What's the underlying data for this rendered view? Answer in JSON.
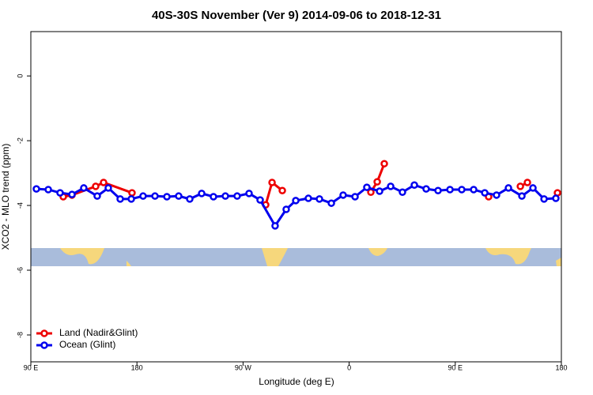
{
  "chart_data": {
    "type": "line",
    "title": "40S-30S November (Ver 9)   2014-09-06 to 2018-12-31",
    "x_label": "Longitude (deg E)",
    "y_label": "XCO2 - MLO trend (ppm)",
    "xlim": [
      90,
      540
    ],
    "xticks": [
      {
        "value": 90,
        "label": "90 E"
      },
      {
        "value": 180,
        "label": "180"
      },
      {
        "value": 270,
        "label": "90 W"
      },
      {
        "value": 360,
        "label": "0"
      },
      {
        "value": 450,
        "label": "90 E"
      },
      {
        "value": 540,
        "label": "180"
      }
    ],
    "ylim": [
      -8.83,
      1.37
    ],
    "yticks": [
      0,
      -2,
      -4,
      -6,
      -8
    ],
    "legend": "bottom-left",
    "series": [
      {
        "name": "Land (Nadir&Glint)",
        "color": "#ee0000",
        "x": [
          117.5,
          124.9,
          145.0,
          151.7,
          175.8,
          null,
          289.2,
          294.6,
          303.3,
          null,
          378.4,
          383.8,
          389.8,
          null,
          478.3,
          null,
          505.2,
          511.2,
          null,
          536.7
        ],
        "values": [
          -3.73,
          -3.68,
          -3.41,
          -3.29,
          -3.61,
          null,
          -3.98,
          -3.29,
          -3.54,
          null,
          -3.59,
          -3.27,
          -2.71,
          null,
          -3.73,
          null,
          -3.41,
          -3.29,
          null,
          -3.61
        ]
      },
      {
        "name": "Ocean (Glint)",
        "color": "#0000ee",
        "x": [
          94.7,
          104.8,
          114.8,
          124.9,
          134.9,
          146.3,
          155.7,
          165.8,
          175.2,
          185.2,
          195.3,
          205.4,
          215.4,
          224.8,
          234.9,
          244.9,
          255.0,
          265.0,
          275.1,
          284.5,
          297.2,
          306.6,
          314.7,
          325.4,
          334.8,
          344.9,
          354.9,
          365.0,
          375.0,
          385.8,
          395.2,
          405.2,
          415.3,
          425.3,
          435.4,
          445.5,
          455.5,
          465.6,
          475.0,
          485.0,
          495.1,
          506.5,
          515.9,
          525.3,
          535.3
        ],
        "values": [
          -3.49,
          -3.51,
          -3.61,
          -3.66,
          -3.46,
          -3.71,
          -3.46,
          -3.8,
          -3.8,
          -3.71,
          -3.71,
          -3.73,
          -3.71,
          -3.8,
          -3.63,
          -3.73,
          -3.71,
          -3.71,
          -3.63,
          -3.83,
          -4.63,
          -4.12,
          -3.85,
          -3.78,
          -3.8,
          -3.93,
          -3.68,
          -3.73,
          -3.44,
          -3.56,
          -3.41,
          -3.59,
          -3.37,
          -3.49,
          -3.54,
          -3.51,
          -3.51,
          -3.51,
          -3.61,
          -3.68,
          -3.46,
          -3.71,
          -3.46,
          -3.8,
          -3.78
        ]
      }
    ]
  }
}
